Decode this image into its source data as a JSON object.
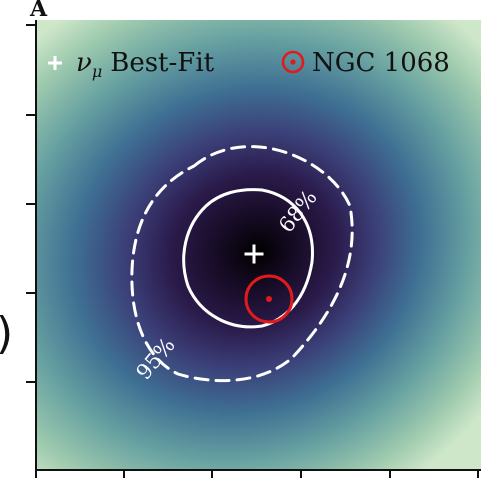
{
  "figure": {
    "panel_letter": "A",
    "axis_cut_glyph": ")"
  },
  "chart_data": {
    "type": "heatmap",
    "title": "",
    "xlabel": "",
    "ylabel": "",
    "colormap": [
      "#000000",
      "#2a1a4a",
      "#3d3f78",
      "#3f6f93",
      "#67a1a1",
      "#9ecaae",
      "#cfe7c9"
    ],
    "grid": false,
    "legend": {
      "placement": "top",
      "entries": [
        {
          "marker": "plus",
          "label": "+",
          "symbol": "ν",
          "subscript": "μ",
          "text": "Best-Fit",
          "color": "#ffffff"
        },
        {
          "marker": "circle-dot",
          "label": "NGC 1068",
          "color": "#e01b1b"
        }
      ]
    },
    "best_fit": {
      "x": 0.505,
      "y": 0.494
    },
    "source": {
      "name": "NGC 1068",
      "x": 0.54,
      "y": 0.396,
      "radius": 0.052
    },
    "contours": [
      {
        "level": "68%",
        "style": "solid",
        "color": "#ffffff"
      },
      {
        "level": "95%",
        "style": "dashed",
        "color": "#ffffff"
      }
    ]
  }
}
